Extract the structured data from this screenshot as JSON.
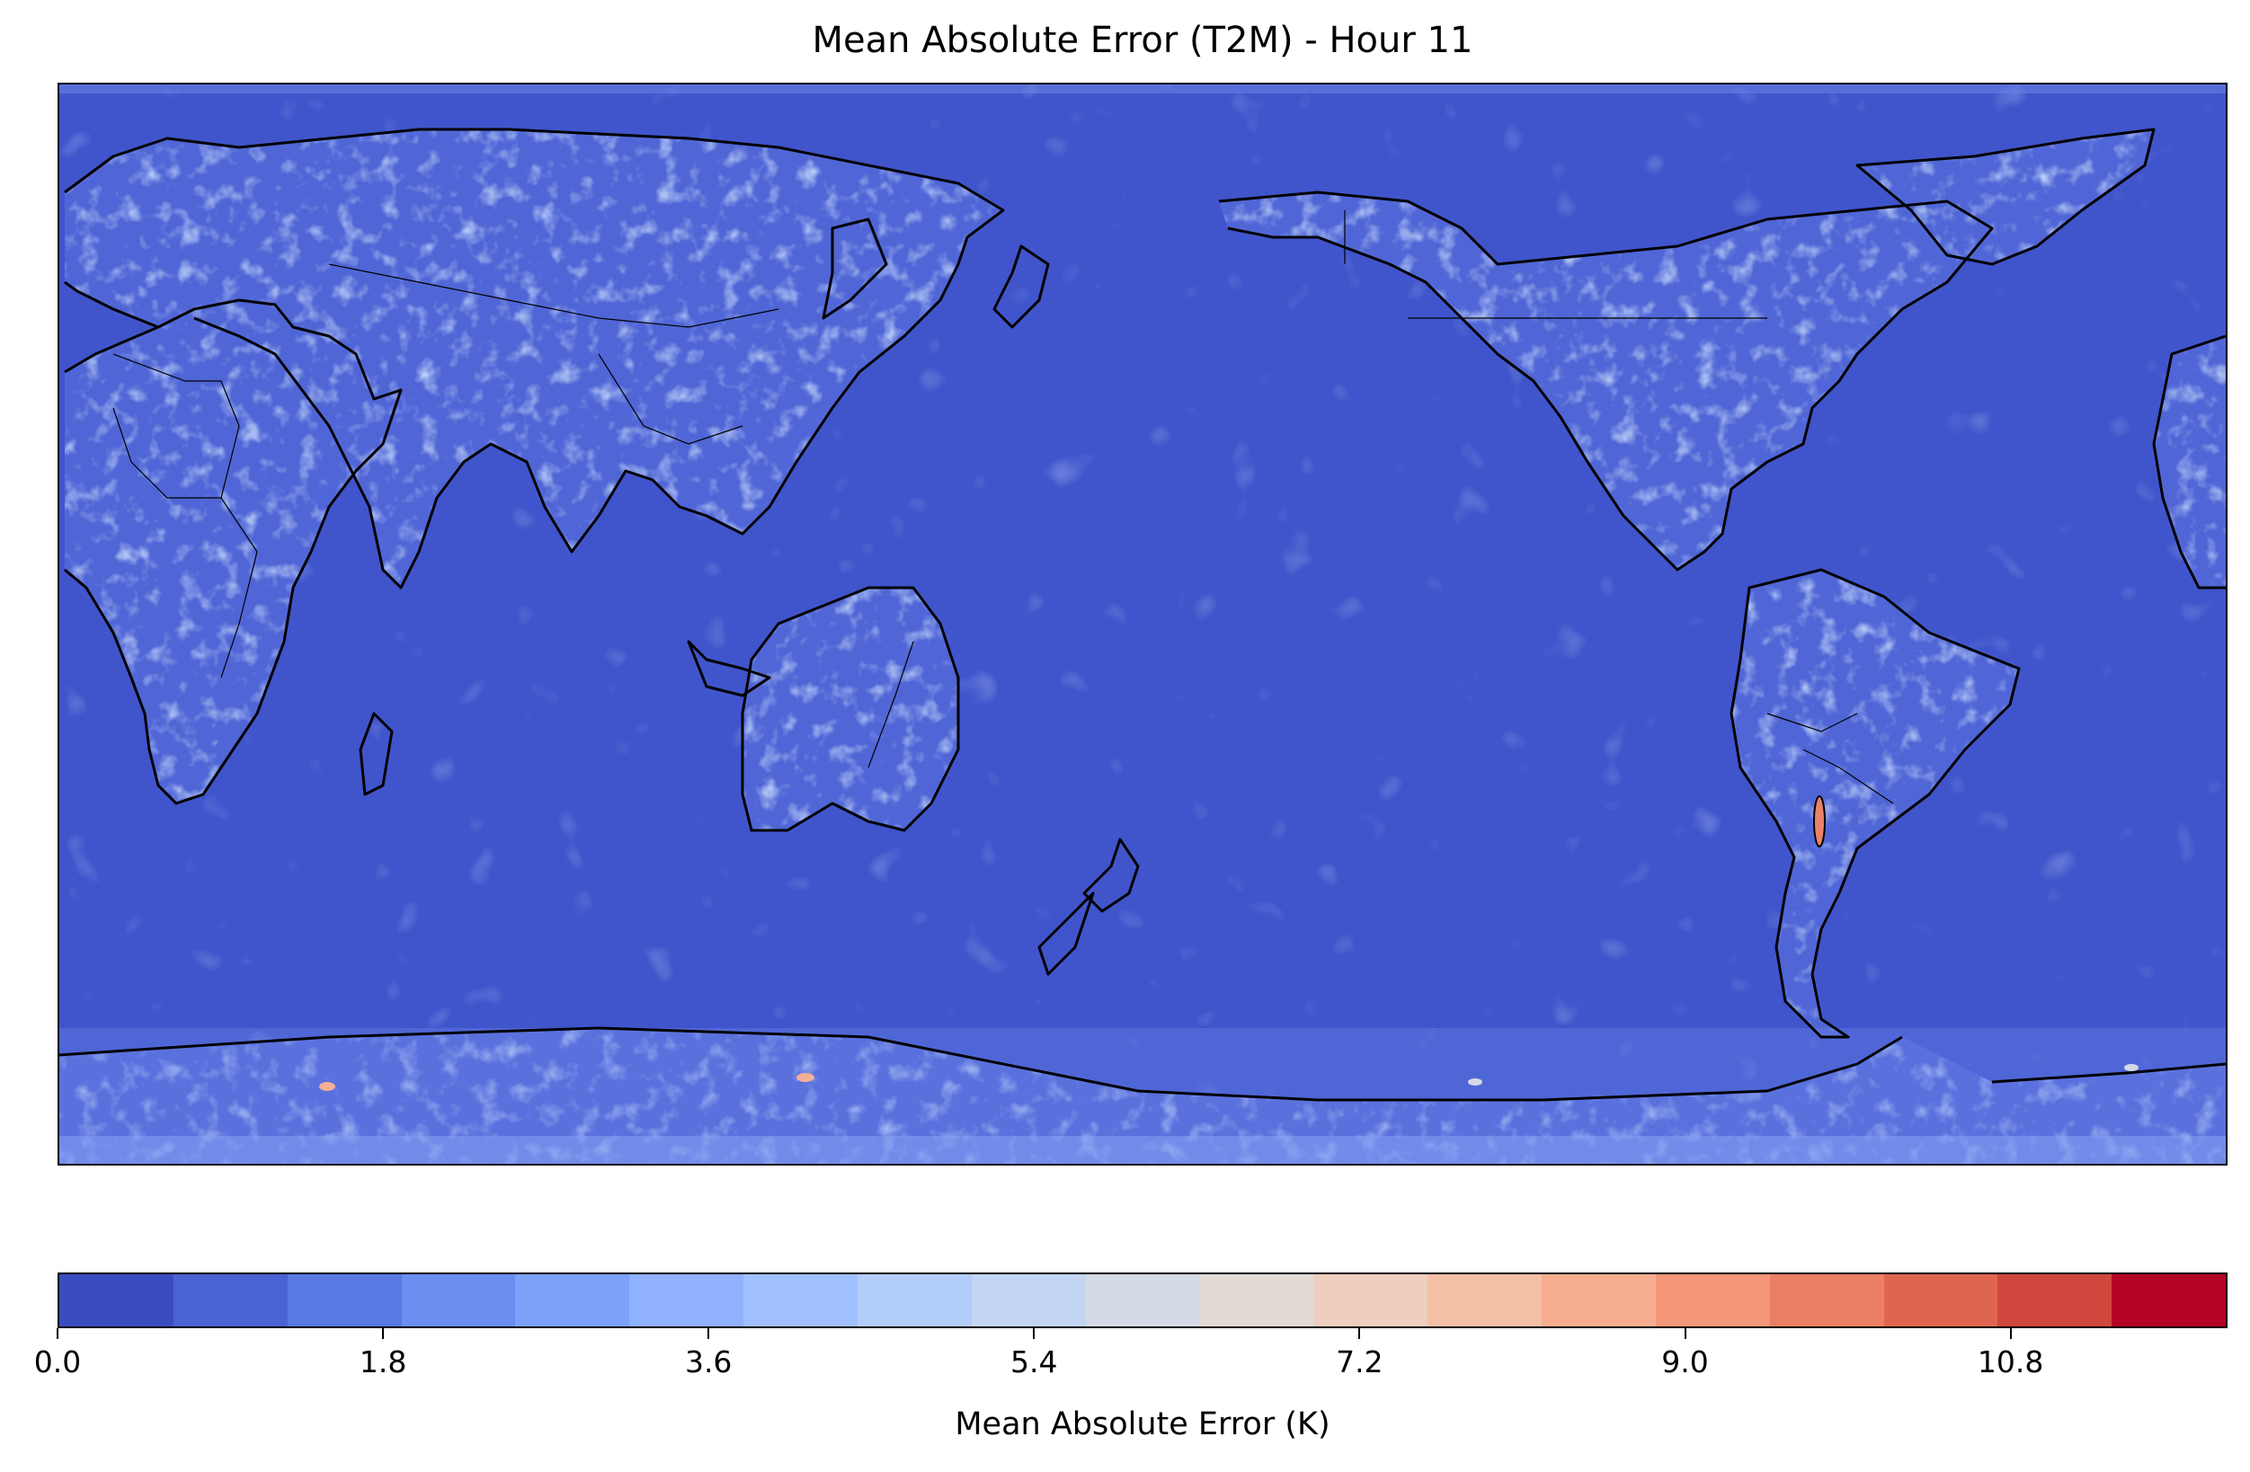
{
  "title": "Mean Absolute Error (T2M) - Hour 11",
  "map": {
    "projection": "PlateCarree, central longitude 180",
    "base_color": "#4055cb",
    "land_noise_color": "#8fb0f7",
    "hotspot_color": "#e8836a",
    "coastline_color": "#000000"
  },
  "colorbar": {
    "label": "Mean Absolute Error (K)",
    "range": [
      0.0,
      12.0
    ],
    "tick_labels": [
      "0.0",
      "1.8",
      "3.6",
      "5.4",
      "7.2",
      "9.0",
      "10.8"
    ],
    "colors": [
      "#3b4cc0",
      "#4a63d3",
      "#5a78e4",
      "#6b8df0",
      "#7da0f9",
      "#8fb1fe",
      "#a1c0ff",
      "#b3cdfb",
      "#c4d5f3",
      "#d4dbe6",
      "#e2dad5",
      "#eecebe",
      "#f4c0a5",
      "#f6ad8f",
      "#f39778",
      "#ec7f63",
      "#e0654f",
      "#d0473d",
      "#b40426"
    ]
  }
}
